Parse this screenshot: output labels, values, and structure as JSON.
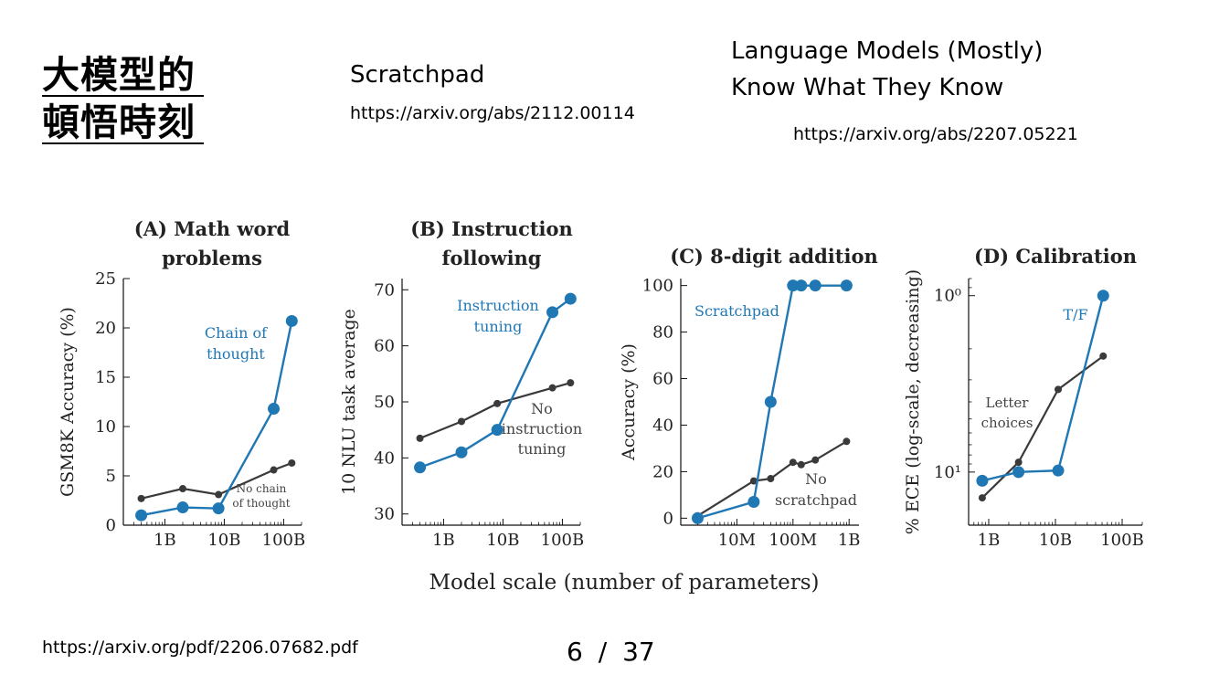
{
  "slide": {
    "title_line1": "大模型的",
    "title_line2": "頓悟時刻",
    "ref1_title": "Scratchpad",
    "ref1_url": "https://arxiv.org/abs/2112.00114",
    "ref2_title_line1": "Language Models (Mostly)",
    "ref2_title_line2": "Know What They Know",
    "ref2_url": "https://arxiv.org/abs/2207.05221",
    "footer_url": "https://arxiv.org/pdf/2206.07682.pdf",
    "page_current": "6",
    "page_sep": "/",
    "page_total": "37",
    "shared_xlabel": "Model scale (number of parameters)"
  },
  "colors": {
    "blue": "#1f77b4",
    "dark": "#3a3a3a"
  },
  "chart_data": [
    {
      "type": "line",
      "title_line1": "(A) Math word",
      "title_line2": "problems",
      "ylabel": "GSM8K Accuracy (%)",
      "xscale": "log",
      "xlim": [
        0.2,
        200
      ],
      "ylim": [
        0,
        25
      ],
      "xticks": [
        1,
        10,
        100
      ],
      "xtick_labels": [
        "1B",
        "10B",
        "100B"
      ],
      "yticks": [
        0,
        5,
        10,
        15,
        20,
        25
      ],
      "ytick_labels": [
        "0",
        "5",
        "10",
        "15",
        "20",
        "25"
      ],
      "series": [
        {
          "color": "blue",
          "label_lines": [
            "Chain of",
            "thought"
          ],
          "x": [
            0.4,
            2,
            8,
            68,
            137
          ],
          "y": [
            1.0,
            1.8,
            1.7,
            11.8,
            20.7
          ]
        },
        {
          "color": "dark",
          "label_lines": [
            "No chain",
            "of thought"
          ],
          "x": [
            0.4,
            2,
            8,
            68,
            137
          ],
          "y": [
            2.7,
            3.7,
            3.1,
            5.6,
            6.3
          ]
        }
      ]
    },
    {
      "type": "line",
      "title_line1": "(B) Instruction",
      "title_line2": "following",
      "ylabel": "10 NLU task average",
      "xscale": "log",
      "xlim": [
        0.2,
        200
      ],
      "ylim": [
        28,
        72
      ],
      "xticks": [
        1,
        10,
        100
      ],
      "xtick_labels": [
        "1B",
        "10B",
        "100B"
      ],
      "yticks": [
        30,
        40,
        50,
        60,
        70
      ],
      "ytick_labels": [
        "30",
        "40",
        "50",
        "60",
        "70"
      ],
      "series": [
        {
          "color": "blue",
          "label_lines": [
            "Instruction",
            "tuning"
          ],
          "x": [
            0.4,
            2,
            8,
            68,
            137
          ],
          "y": [
            38.3,
            41.0,
            45.0,
            66.0,
            68.4
          ]
        },
        {
          "color": "dark",
          "label_lines": [
            "No",
            "instruction",
            "tuning"
          ],
          "x": [
            0.4,
            2,
            8,
            68,
            137
          ],
          "y": [
            43.5,
            46.5,
            49.7,
            52.5,
            53.4
          ]
        }
      ]
    },
    {
      "type": "line",
      "title_line1": "(C) 8-digit addition",
      "title_line2": "",
      "ylabel": "Accuracy (%)",
      "xscale": "log",
      "xlim": [
        1,
        1500
      ],
      "ylim": [
        -3,
        103
      ],
      "xticks": [
        10,
        100,
        1000
      ],
      "xtick_labels": [
        "10M",
        "100M",
        "1B"
      ],
      "yticks": [
        0,
        20,
        40,
        60,
        80,
        100
      ],
      "ytick_labels": [
        "0",
        "20",
        "40",
        "60",
        "80",
        "100"
      ],
      "series": [
        {
          "color": "blue",
          "label_lines": [
            "Scratchpad"
          ],
          "x": [
            2,
            20,
            40,
            100,
            140,
            250,
            900
          ],
          "y": [
            0,
            7,
            50,
            100,
            100,
            100,
            100
          ]
        },
        {
          "color": "dark",
          "label_lines": [
            "No",
            "scratchpad"
          ],
          "x": [
            2,
            20,
            40,
            100,
            140,
            250,
            900
          ],
          "y": [
            1,
            16,
            17,
            24,
            23,
            25,
            33
          ]
        }
      ]
    },
    {
      "type": "line",
      "title_line1": "(D) Calibration",
      "title_line2": "",
      "ylabel": "% ECE (log-scale, decreasing)",
      "xscale": "log",
      "yscale": "log",
      "y_direction": "decreasing",
      "xlim": [
        0.5,
        200
      ],
      "ylim": [
        20,
        0.8
      ],
      "xticks": [
        1,
        10,
        100
      ],
      "xtick_labels": [
        "1B",
        "10B",
        "100B"
      ],
      "yticks": [
        1,
        10
      ],
      "ytick_labels": [
        "10⁰",
        "10¹"
      ],
      "series": [
        {
          "color": "blue",
          "label_lines": [
            "T/F"
          ],
          "x": [
            0.8,
            2.8,
            11,
            52
          ],
          "y": [
            11.2,
            10.0,
            9.8,
            1.0
          ]
        },
        {
          "color": "dark",
          "label_lines": [
            "Letter",
            "choices"
          ],
          "x": [
            0.8,
            2.8,
            11,
            52
          ],
          "y": [
            14.0,
            8.8,
            3.4,
            2.2
          ]
        }
      ]
    }
  ]
}
